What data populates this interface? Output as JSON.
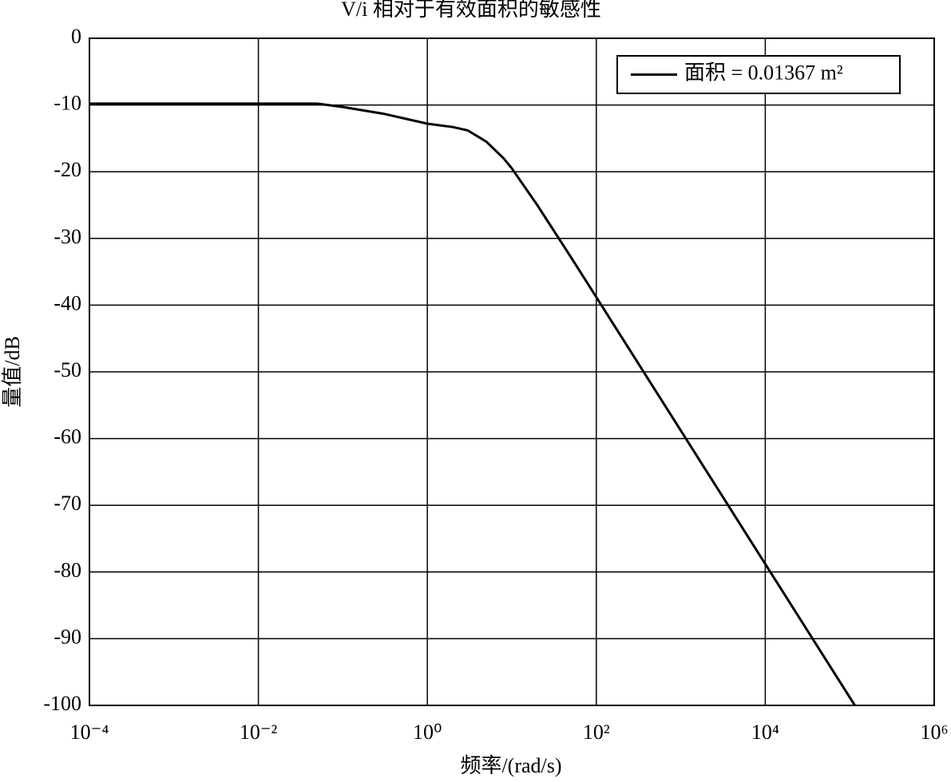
{
  "chart_data": {
    "type": "line",
    "title": "V/i 相对于有效面积的敏感性",
    "x_label": "频率/(rad/s)",
    "y_label": "量值/dB",
    "x_log": true,
    "grid": true,
    "legend": "upper right",
    "x": [
      0.0001,
      0.001,
      0.01,
      0.05,
      0.1,
      0.3,
      1,
      2,
      3,
      5,
      8,
      10,
      20,
      50,
      100,
      1000,
      10000,
      100000,
      115000
    ],
    "series": [
      {
        "name": "面积 = 0.01367 m²",
        "color": "#000000",
        "values": [
          -9.8,
          -9.8,
          -9.8,
          -9.8,
          -10.3,
          -11.3,
          -12.8,
          -13.3,
          -13.8,
          -15.5,
          -18,
          -19.5,
          -25,
          -32.8,
          -38.8,
          -58.8,
          -78.8,
          -98.8,
          -100
        ]
      }
    ],
    "xlim": [
      0.0001,
      1000000
    ],
    "xticks": [
      {
        "value": 0.0001,
        "label": "10⁻⁴"
      },
      {
        "value": 0.01,
        "label": "10⁻²"
      },
      {
        "value": 1,
        "label": "10⁰"
      },
      {
        "value": 100,
        "label": "10²"
      },
      {
        "value": 10000,
        "label": "10⁴"
      },
      {
        "value": 1000000,
        "label": "10⁶"
      }
    ],
    "ylim": [
      -100,
      0
    ],
    "yticks": [
      0,
      -10,
      -20,
      -30,
      -40,
      -50,
      -60,
      -70,
      -80,
      -90,
      -100
    ]
  }
}
